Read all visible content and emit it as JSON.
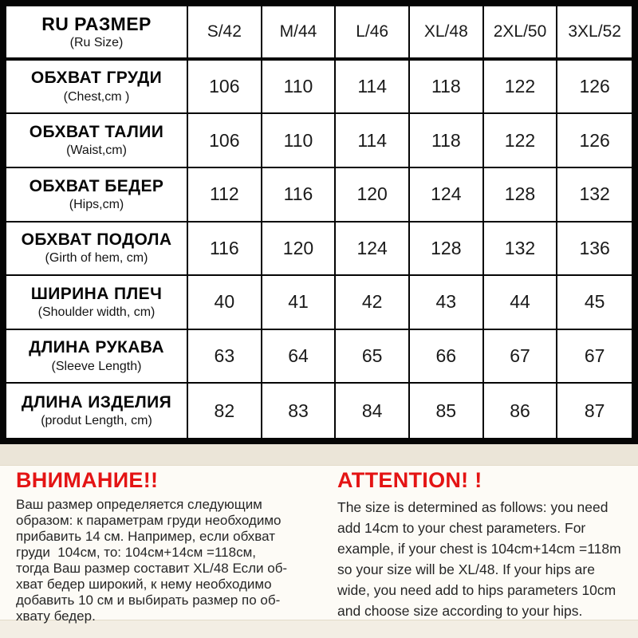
{
  "table": {
    "header": {
      "label": "RU РАЗМЕР",
      "sublabel": "(Ru Size)"
    },
    "sizes": [
      "S/42",
      "M/44",
      "L/46",
      "XL/48",
      "2XL/50",
      "3XL/52"
    ],
    "rows": [
      {
        "label": "ОБХВАТ ГРУДИ",
        "sublabel": "(Chest,cm )",
        "values": [
          "106",
          "110",
          "114",
          "118",
          "122",
          "126"
        ]
      },
      {
        "label": "ОБХВАТ ТАЛИИ",
        "sublabel": "(Waist,cm)",
        "values": [
          "106",
          "110",
          "114",
          "118",
          "122",
          "126"
        ]
      },
      {
        "label": "ОБХВАТ БЕДЕР",
        "sublabel": "(Hips,cm)",
        "values": [
          "112",
          "116",
          "120",
          "124",
          "128",
          "132"
        ]
      },
      {
        "label": "ОБХВАТ ПОДОЛА",
        "sublabel": "(Girth of hem, cm)",
        "values": [
          "116",
          "120",
          "124",
          "128",
          "132",
          "136"
        ]
      },
      {
        "label": "ШИРИНА ПЛЕЧ",
        "sublabel": "(Shoulder width, cm)",
        "values": [
          "40",
          "41",
          "42",
          "43",
          "44",
          "45"
        ]
      },
      {
        "label": "ДЛИНА РУКАВА",
        "sublabel": "(Sleeve Length)",
        "values": [
          "63",
          "64",
          "65",
          "66",
          "67",
          "67"
        ]
      },
      {
        "label": "ДЛИНА ИЗДЕЛИЯ",
        "sublabel": "(produt Length, cm)",
        "values": [
          "82",
          "83",
          "84",
          "85",
          "86",
          "87"
        ]
      }
    ]
  },
  "notices": {
    "ru": {
      "heading": "ВНИМАНИЕ!!",
      "body": "Ваш размер определяется следующим\nобразом: к параметрам груди необходимо\nприбавить 14 см. Например, если обхват\nгруди  104см, то: 104см+14см =118см,\nтогда Ваш размер составит XL/48 Если об-\nхват бедер широкий, к нему необходимо\nдобавить 10 см и выбирать размер по об-\nхвату бедер."
    },
    "en": {
      "heading": "ATTENTION! !",
      "body": "The size is determined as follows: you need\nadd 14cm to your chest parameters. For\nexample, if your chest is 104cm+14cm =118m\nso your size will be XL/48. If your hips are\nwide, you need add to hips parameters 10cm\nand choose size according to your hips."
    }
  },
  "colors": {
    "accent_red": "#e41414",
    "table_border": "#050505",
    "page_background": "#f3eee4",
    "panel_background": "#fdfbf6"
  }
}
